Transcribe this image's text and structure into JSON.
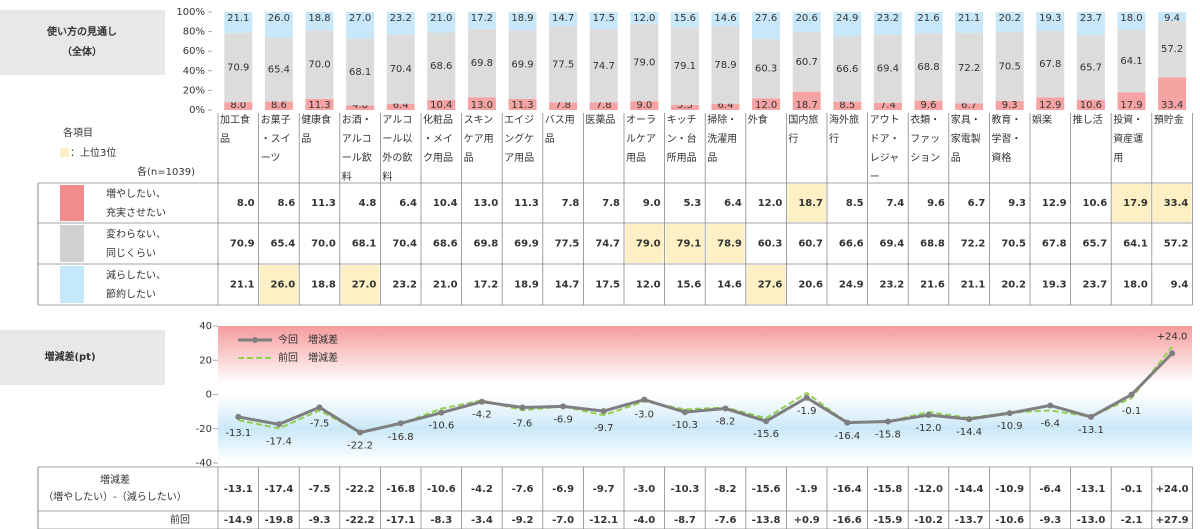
{
  "section_title": "使い方の見通し（全体）",
  "diff_section_title": "増減差(pt)",
  "table": {
    "header_label": "各項目",
    "legend_label": "：上位3位",
    "n_label": "各(n=1039)",
    "diff_label": "増減差",
    "diff_sublabel": "（増やしたい）-（減らしたい）",
    "prev_label": "前回",
    "highlight_color": "#fdf0c4"
  },
  "chart_data": [
    {
      "type": "stacked_bar",
      "categories": [
        "加工食品",
        "お菓子・スイーツ",
        "健康食品",
        "お酒・アルコール飲料",
        "アルコール以外の飲料",
        "化粧品・メイク用品",
        "スキンケア用品",
        "エイジングケア用品",
        "バス用品",
        "医薬品",
        "オーラルケア用品",
        "キッチン・台所用品",
        "掃除・洗濯用品",
        "外食",
        "国内旅行",
        "海外旅行",
        "アウトドア・レジャー",
        "衣類・ファッション",
        "家具・家電製品",
        "教育・学習・資格",
        "娯楽",
        "推し活",
        "投資・資産運用",
        "預貯金"
      ],
      "ylim": [
        0,
        100
      ],
      "yticks": [
        {
          "value": 0,
          "label": "0%"
        },
        {
          "value": 20,
          "label": "20%"
        },
        {
          "value": 40,
          "label": "40%"
        },
        {
          "value": 60,
          "label": "60%"
        },
        {
          "value": 80,
          "label": "80%"
        },
        {
          "value": 100,
          "label": "100%"
        }
      ],
      "series": [
        {
          "name": "増やしたい、充実させたい",
          "color": "#f6a3a3",
          "swatch": "#f28c8c",
          "values": [
            8.0,
            8.6,
            11.3,
            4.8,
            6.4,
            10.4,
            13.0,
            11.3,
            7.8,
            7.8,
            9.0,
            5.3,
            6.4,
            12.0,
            18.7,
            8.5,
            7.4,
            9.6,
            6.7,
            9.3,
            12.9,
            10.6,
            17.9,
            33.4
          ],
          "value_labels": [
            "8.0",
            "8.6",
            "11.3",
            "4.8",
            "6.4",
            "10.4",
            "13.0",
            "11.3",
            "7.8",
            "7.8",
            "9.0",
            "5.3",
            "6.4",
            "12.0",
            "18.7",
            "8.5",
            "7.4",
            "9.6",
            "6.7",
            "9.3",
            "12.9",
            "10.6",
            "17.9",
            "33.4"
          ]
        },
        {
          "name": "変わらない、同じくらい",
          "color": "#dcdcdc",
          "swatch": "#d0d0d0",
          "values": [
            70.9,
            65.4,
            70.0,
            68.1,
            70.4,
            68.6,
            69.8,
            69.9,
            77.5,
            74.7,
            79.0,
            79.1,
            78.9,
            60.3,
            60.7,
            66.6,
            69.4,
            68.8,
            72.2,
            70.5,
            67.8,
            65.7,
            64.1,
            57.2
          ],
          "value_labels": [
            "70.9",
            "65.4",
            "70.0",
            "68.1",
            "70.4",
            "68.6",
            "69.8",
            "69.9",
            "77.5",
            "74.7",
            "79.0",
            "79.1",
            "78.9",
            "60.3",
            "60.7",
            "66.6",
            "69.4",
            "68.8",
            "72.2",
            "70.5",
            "67.8",
            "65.7",
            "64.1",
            "57.2"
          ]
        },
        {
          "name": "減らしたい、節約したい",
          "color": "#c8e7f8",
          "swatch": "#c6e8fb",
          "values": [
            21.1,
            26.0,
            18.8,
            27.0,
            23.2,
            21.0,
            17.2,
            18.9,
            14.7,
            17.5,
            12.0,
            15.6,
            14.6,
            27.6,
            20.6,
            24.9,
            23.2,
            21.6,
            21.1,
            20.2,
            19.3,
            23.7,
            18.0,
            9.4
          ],
          "value_labels": [
            "21.1",
            "26.0",
            "18.8",
            "27.0",
            "23.2",
            "21.0",
            "17.2",
            "18.9",
            "14.7",
            "17.5",
            "12.0",
            "15.6",
            "14.6",
            "27.6",
            "20.6",
            "24.9",
            "23.2",
            "21.6",
            "21.1",
            "20.2",
            "19.3",
            "23.7",
            "18.0",
            "9.4"
          ]
        }
      ]
    },
    {
      "type": "line",
      "ylim": [
        -40,
        40
      ],
      "yticks": [
        -40,
        -20,
        0,
        20,
        40
      ],
      "series": [
        {
          "name": "今回　増減差",
          "color": "#7f7f7f",
          "values": [
            -13.1,
            -17.4,
            -7.5,
            -22.2,
            -16.8,
            -10.6,
            -4.2,
            -7.6,
            -6.9,
            -9.7,
            -3.0,
            -10.3,
            -8.2,
            -15.6,
            -1.9,
            -16.4,
            -15.8,
            -12.0,
            -14.4,
            -10.9,
            -6.4,
            -13.1,
            -0.1,
            24.0
          ],
          "value_labels": [
            "-13.1",
            "-17.4",
            "-7.5",
            "-22.2",
            "-16.8",
            "-10.6",
            "-4.2",
            "-7.6",
            "-6.9",
            "-9.7",
            "-3.0",
            "-10.3",
            "-8.2",
            "-15.6",
            "-1.9",
            "-16.4",
            "-15.8",
            "-12.0",
            "-14.4",
            "-10.9",
            "-6.4",
            "-13.1",
            "-0.1",
            "+24.0"
          ]
        },
        {
          "name": "前回　増減差",
          "color": "#92d050",
          "values": [
            -14.9,
            -19.8,
            -9.3,
            -22.2,
            -17.1,
            -8.3,
            -3.4,
            -9.2,
            -7.0,
            -12.1,
            -4.0,
            -8.7,
            -7.6,
            -13.8,
            0.9,
            -16.6,
            -15.9,
            -10.2,
            -13.7,
            -10.6,
            -9.3,
            -13.0,
            -2.1,
            27.9
          ],
          "value_labels": [
            "-14.9",
            "-19.8",
            "-9.3",
            "-22.2",
            "-17.1",
            "-8.3",
            "-3.4",
            "-9.2",
            "-7.0",
            "-12.1",
            "-4.0",
            "-8.7",
            "-7.6",
            "-13.8",
            "+0.9",
            "-16.6",
            "-15.9",
            "-10.2",
            "-13.7",
            "-10.6",
            "-9.3",
            "-13.0",
            "-2.1",
            "+27.9"
          ]
        }
      ]
    }
  ]
}
